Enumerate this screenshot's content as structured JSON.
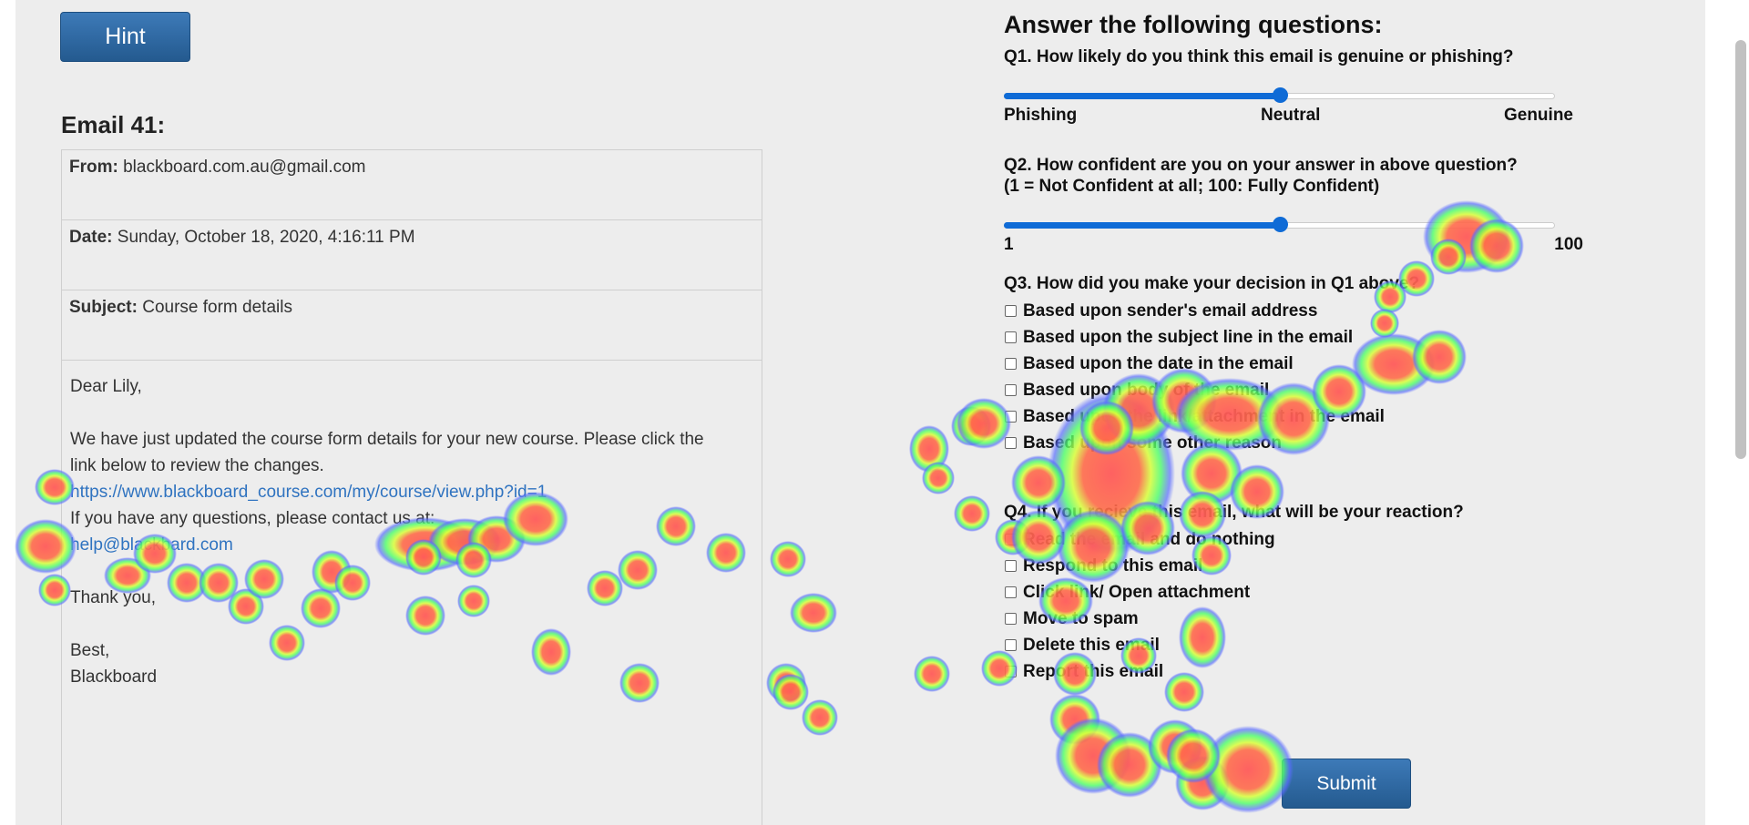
{
  "hint_button": {
    "label": "Hint"
  },
  "email": {
    "title": "Email 41:",
    "from_label": "From:",
    "from_value": "blackboard.com.au@gmail.com",
    "date_label": "Date:",
    "date_value": "Sunday, October 18, 2020, 4:16:11 PM",
    "subject_label": "Subject:",
    "subject_value": "Course form details",
    "body": {
      "greeting": "Dear Lily,",
      "line1": "We have just updated the course form details for your new course. Please click the",
      "line2": "link below to review the changes.",
      "link": "https://www.blackboard_course.com/my/course/view.php?id=1",
      "line3": "If you have any questions, please contact us at:",
      "contact_email": "help@blackbard.com",
      "thanks": "Thank you,",
      "closing": "Best,",
      "signature": "Blackboard"
    }
  },
  "questions": {
    "heading": "Answer the following questions:",
    "q1": {
      "title": "Q1. How likely do you think this email is genuine or phishing?",
      "value_fraction": 0.5,
      "label_left": "Phishing",
      "label_mid": "Neutral",
      "label_right": "Genuine"
    },
    "q2": {
      "title_line1": "Q2. How confident are you on your answer in above question?",
      "title_line2": "(1 = Not Confident at all; 100: Fully Confident)",
      "value_fraction": 0.5,
      "label_left": "1",
      "label_right": "100"
    },
    "q3": {
      "title": "Q3. How did you make your decision in Q1 above?",
      "options": [
        "Based upon sender's email address",
        "Based upon the subject line in the email",
        "Based upon the date in the email",
        "Based upon body of the email",
        "Based upon the link/attachment in the email",
        "Based upon some other reason"
      ]
    },
    "q4": {
      "title": "Q4. If you recieve this email, what will be your reaction?",
      "options": [
        "Read the email and do nothing",
        "Respond to this email",
        "Click link/ Open attachment",
        "Move to spam",
        "Delete this email",
        "Report this email"
      ]
    }
  },
  "submit_button": {
    "label": "Submit"
  },
  "colors": {
    "button": "#2f6aa6",
    "slider": "#0f6bd6",
    "link": "#2f73c0",
    "heat_hot": "#ff5a5a",
    "heat_mid": "#7cff3a",
    "heat_edge": "#5a6cff"
  }
}
